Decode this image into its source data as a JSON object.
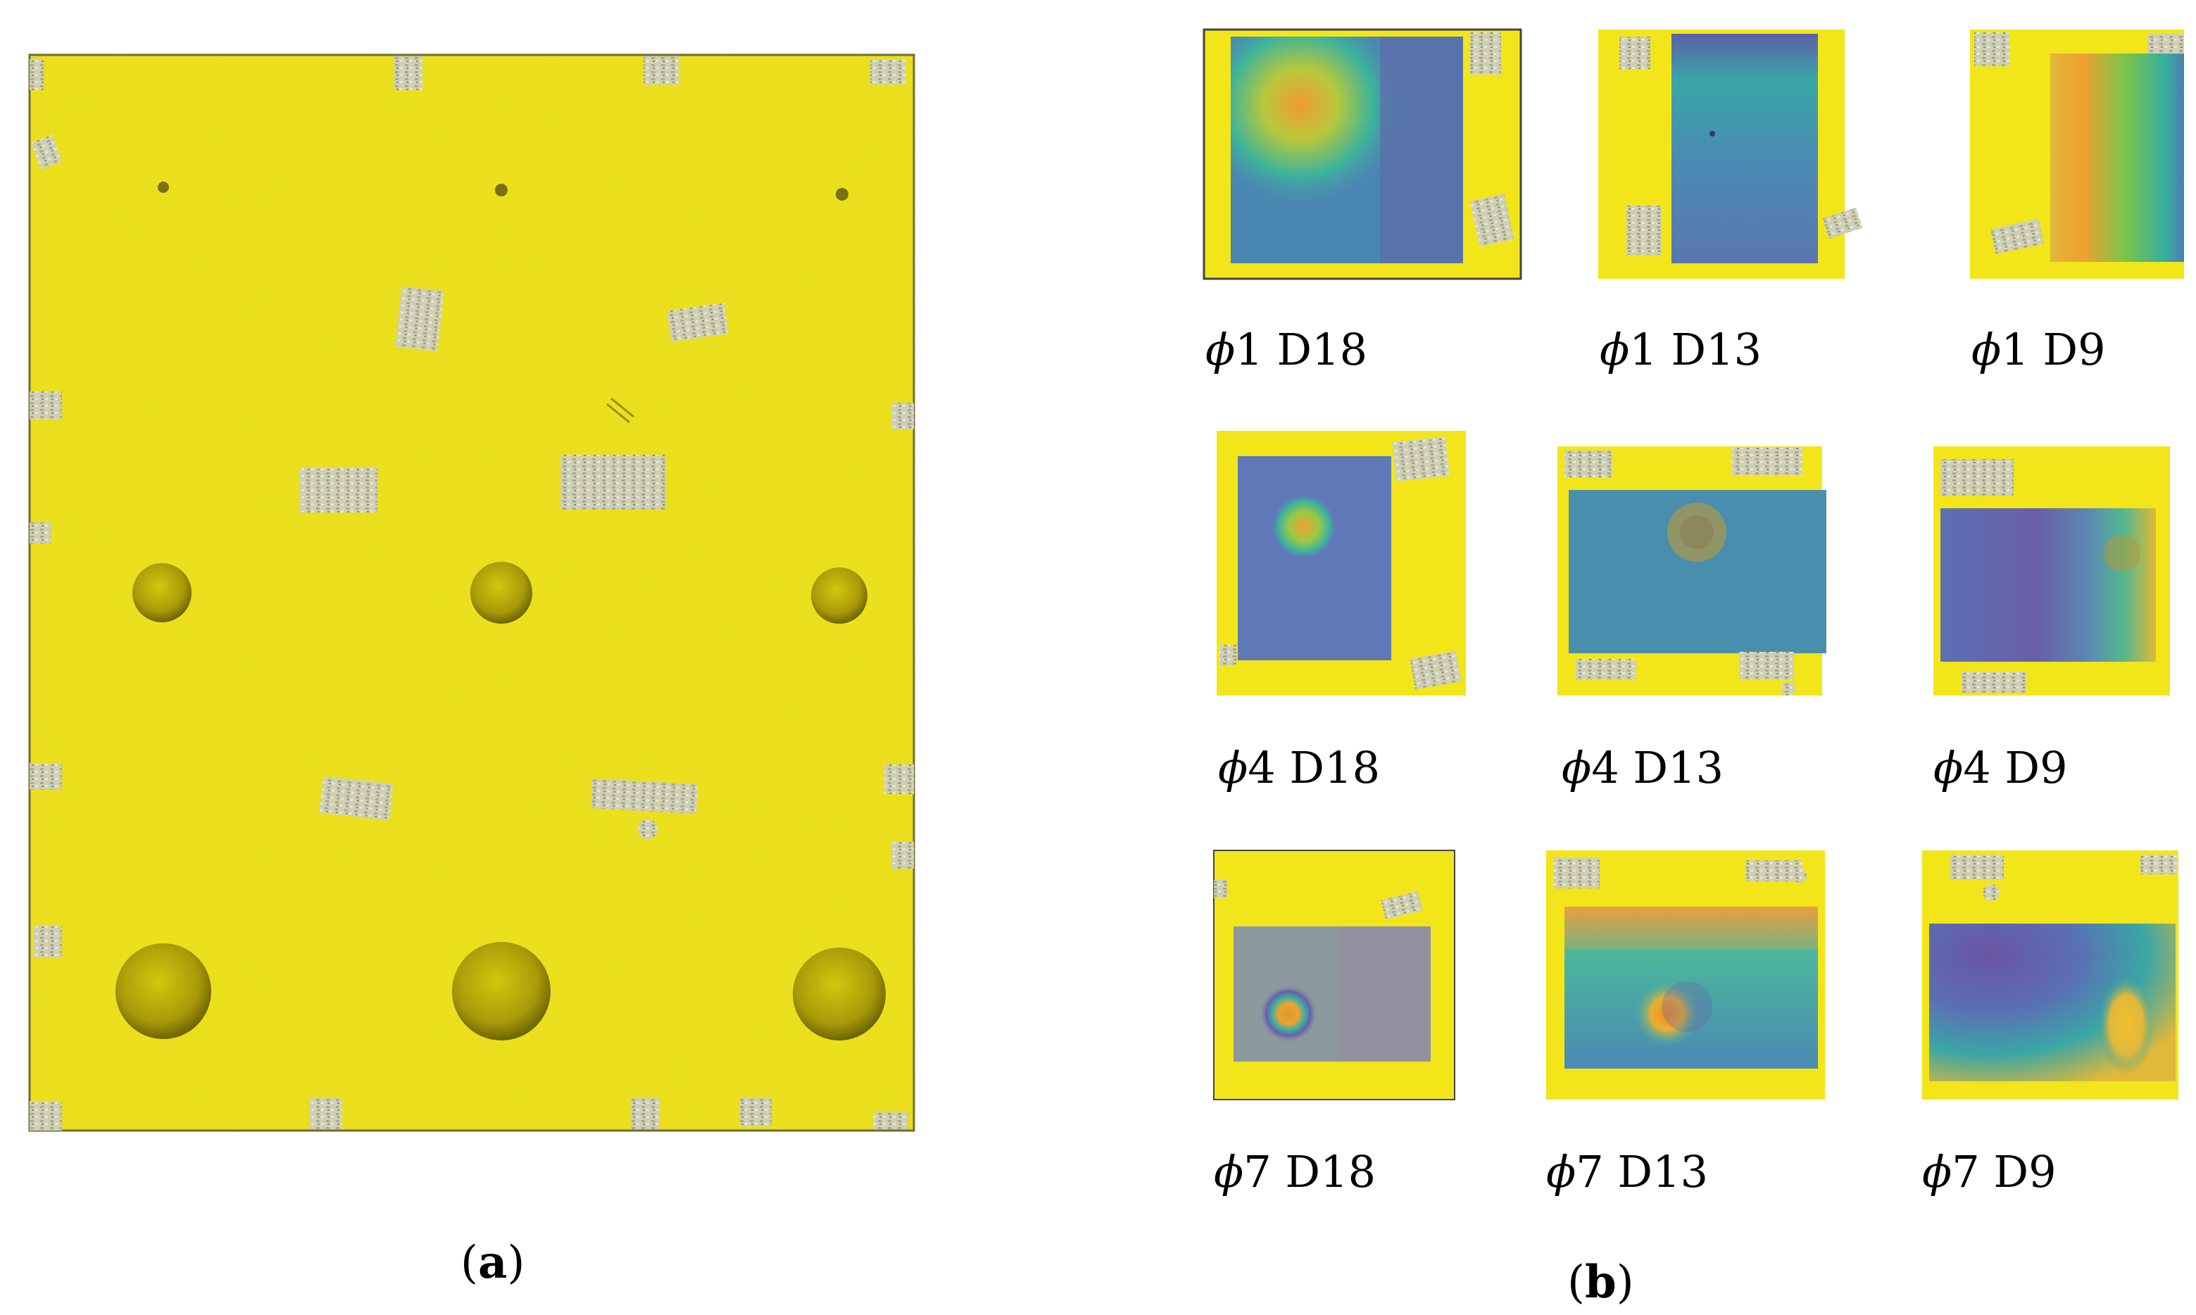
{
  "panels": [
    {
      "id": "a",
      "letter": "a"
    },
    {
      "id": "b",
      "letter": "b"
    }
  ],
  "thumbnails": [
    {
      "phi": "ϕ",
      "label": "1 D18"
    },
    {
      "phi": "ϕ",
      "label": "1 D13"
    },
    {
      "phi": "ϕ",
      "label": "1 D9"
    },
    {
      "phi": "ϕ",
      "label": "4 D18"
    },
    {
      "phi": "ϕ",
      "label": "4 D13"
    },
    {
      "phi": "ϕ",
      "label": "4 D9"
    },
    {
      "phi": "ϕ",
      "label": "7 D18"
    },
    {
      "phi": "ϕ",
      "label": "7 D13"
    },
    {
      "phi": "ϕ",
      "label": "7 D9"
    }
  ],
  "colors": {
    "specimen_yellow": "#f2e61a",
    "tape_silver": "#cdcdb4",
    "heat_low": "#5e6fb8",
    "heat_mid": "#35b5a0",
    "heat_high": "#f0a030"
  }
}
